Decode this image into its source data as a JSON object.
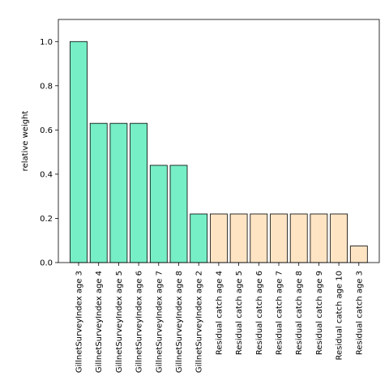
{
  "chart_data": {
    "type": "bar",
    "title": "",
    "xlabel": "",
    "ylabel": "relative weight",
    "ylim": [
      0,
      1.1
    ],
    "yticks": [
      "0.0",
      "0.2",
      "0.4",
      "0.6",
      "0.8",
      "1.0"
    ],
    "grid": false,
    "categories": [
      "GillnetSurveyIndex age 3",
      "GillnetSurveyIndex age 4",
      "GillnetSurveyIndex age 5",
      "GillnetSurveyIndex age 6",
      "GillnetSurveyIndex age 7",
      "GillnetSurveyIndex age 8",
      "GillnetSurveyIndex age 2",
      "Residual catch age 4",
      "Residual catch age 5",
      "Residual catch age 6",
      "Residual catch age 7",
      "Residual catch age 8",
      "Residual catch age 9",
      "Residual catch age 10",
      "Residual catch age 3"
    ],
    "values": [
      1.0,
      0.63,
      0.63,
      0.63,
      0.44,
      0.44,
      0.22,
      0.22,
      0.22,
      0.22,
      0.22,
      0.22,
      0.22,
      0.22,
      0.075
    ],
    "colors": [
      "#76eec6",
      "#76eec6",
      "#76eec6",
      "#76eec6",
      "#76eec6",
      "#76eec6",
      "#76eec6",
      "#ffe4c4",
      "#ffe4c4",
      "#ffe4c4",
      "#ffe4c4",
      "#ffe4c4",
      "#ffe4c4",
      "#ffe4c4",
      "#ffe4c4"
    ]
  }
}
